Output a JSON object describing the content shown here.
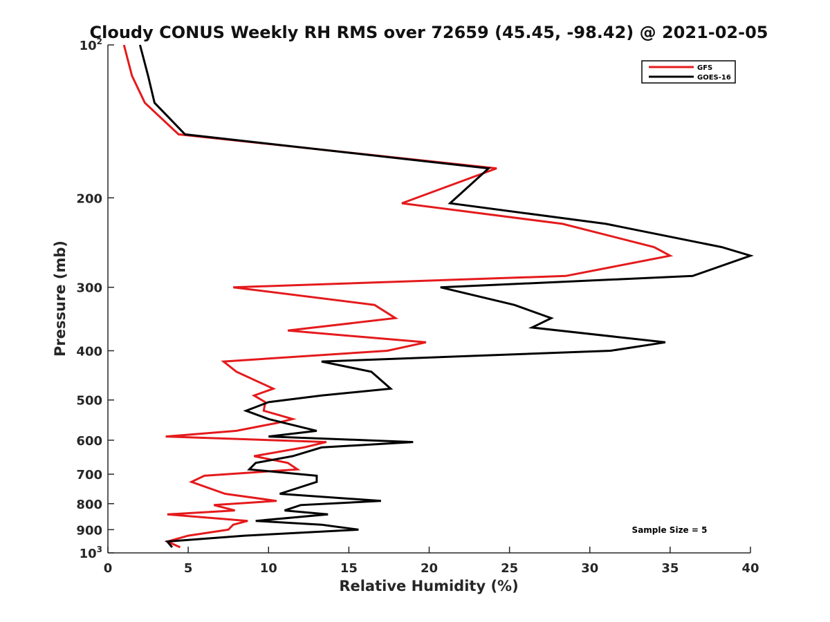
{
  "chart_data": {
    "type": "line",
    "title": "Cloudy CONUS Weekly RH RMS over 72659 (45.45, -98.42) @ 2021-02-05",
    "xlabel": "Relative Humidity (%)",
    "ylabel": "Pressure (mb)",
    "xlim": [
      0,
      40
    ],
    "ylim": [
      100,
      1000
    ],
    "y_scale": "log",
    "y_reversed": true,
    "x_ticks": [
      "0",
      "5",
      "10",
      "15",
      "20",
      "25",
      "30",
      "35",
      "40"
    ],
    "y_ticks": [
      {
        "value": 100,
        "base": "10",
        "exp": "2"
      },
      {
        "value": 200,
        "label": "200"
      },
      {
        "value": 300,
        "label": "300"
      },
      {
        "value": 400,
        "label": "400"
      },
      {
        "value": 500,
        "label": "500"
      },
      {
        "value": 600,
        "label": "600"
      },
      {
        "value": 700,
        "label": "700"
      },
      {
        "value": 800,
        "label": "800"
      },
      {
        "value": 900,
        "label": "900"
      },
      {
        "value": 1000,
        "base": "10",
        "exp": "3"
      }
    ],
    "legend_position": "top-right",
    "annotation": "Sample Size = 5",
    "series": [
      {
        "name": "GFS",
        "color": "#e41a1c",
        "points": [
          [
            1.0,
            100
          ],
          [
            1.5,
            115
          ],
          [
            2.3,
            130
          ],
          [
            4.4,
            150
          ],
          [
            24.2,
            175
          ],
          [
            18.3,
            205
          ],
          [
            28.3,
            225
          ],
          [
            34.0,
            250
          ],
          [
            35.0,
            260
          ],
          [
            28.5,
            285
          ],
          [
            7.8,
            300
          ],
          [
            16.6,
            325
          ],
          [
            17.9,
            345
          ],
          [
            11.2,
            365
          ],
          [
            19.8,
            385
          ],
          [
            17.4,
            400
          ],
          [
            7.2,
            420
          ],
          [
            8.0,
            440
          ],
          [
            10.3,
            475
          ],
          [
            9.1,
            490
          ],
          [
            9.8,
            505
          ],
          [
            9.7,
            525
          ],
          [
            11.5,
            545
          ],
          [
            10.5,
            555
          ],
          [
            8.0,
            575
          ],
          [
            3.6,
            590
          ],
          [
            13.6,
            605
          ],
          [
            12.2,
            620
          ],
          [
            9.1,
            645
          ],
          [
            11.2,
            665
          ],
          [
            11.8,
            685
          ],
          [
            6.0,
            705
          ],
          [
            5.2,
            725
          ],
          [
            7.3,
            765
          ],
          [
            10.5,
            790
          ],
          [
            6.6,
            805
          ],
          [
            7.9,
            825
          ],
          [
            3.7,
            840
          ],
          [
            8.7,
            865
          ],
          [
            7.8,
            880
          ],
          [
            7.5,
            900
          ],
          [
            5.0,
            925
          ],
          [
            3.7,
            950
          ],
          [
            4.5,
            975
          ]
        ]
      },
      {
        "name": "GOES-16",
        "color": "#000000",
        "points": [
          [
            2.0,
            100
          ],
          [
            2.5,
            115
          ],
          [
            2.9,
            130
          ],
          [
            4.8,
            150
          ],
          [
            23.7,
            175
          ],
          [
            21.3,
            205
          ],
          [
            31.0,
            225
          ],
          [
            38.2,
            250
          ],
          [
            40.0,
            260
          ],
          [
            36.4,
            285
          ],
          [
            20.7,
            300
          ],
          [
            25.3,
            325
          ],
          [
            27.6,
            345
          ],
          [
            26.4,
            360
          ],
          [
            34.7,
            385
          ],
          [
            31.3,
            400
          ],
          [
            13.3,
            420
          ],
          [
            16.4,
            440
          ],
          [
            17.6,
            475
          ],
          [
            13.3,
            490
          ],
          [
            10.0,
            505
          ],
          [
            8.6,
            525
          ],
          [
            10.0,
            545
          ],
          [
            11.0,
            555
          ],
          [
            13.0,
            575
          ],
          [
            10.0,
            590
          ],
          [
            19.0,
            605
          ],
          [
            13.3,
            620
          ],
          [
            11.5,
            645
          ],
          [
            9.2,
            665
          ],
          [
            8.8,
            685
          ],
          [
            13.0,
            705
          ],
          [
            13.0,
            725
          ],
          [
            10.7,
            765
          ],
          [
            17.0,
            790
          ],
          [
            12.0,
            805
          ],
          [
            11.0,
            825
          ],
          [
            13.7,
            840
          ],
          [
            9.2,
            865
          ],
          [
            13.3,
            880
          ],
          [
            15.6,
            900
          ],
          [
            8.5,
            925
          ],
          [
            3.7,
            950
          ],
          [
            4.0,
            975
          ]
        ]
      }
    ]
  }
}
